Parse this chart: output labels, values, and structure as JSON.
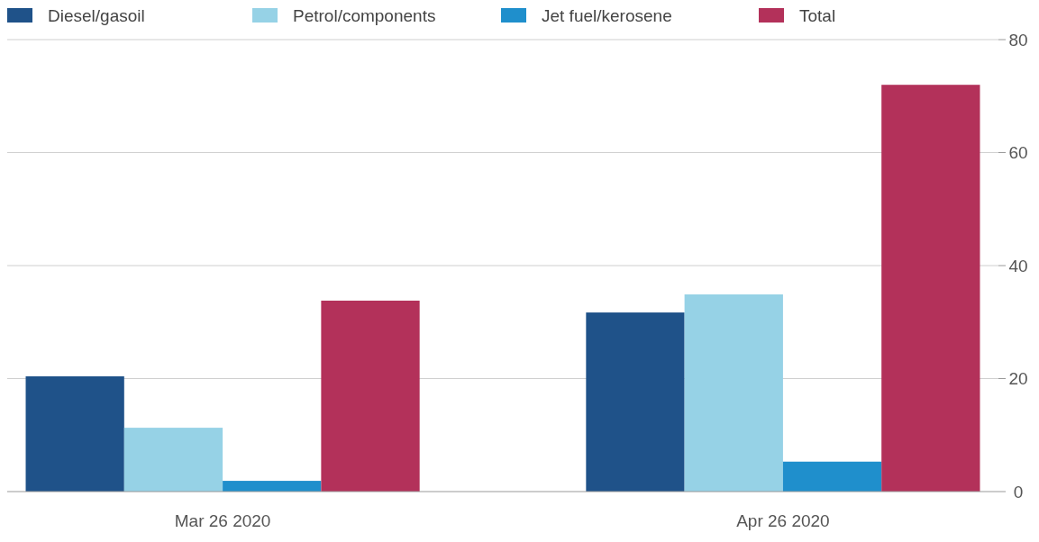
{
  "chart_data": {
    "type": "bar",
    "categories": [
      "Mar 26 2020",
      "Apr 26 2020"
    ],
    "series": [
      {
        "name": "Diesel/gasoil",
        "color": "#1f5289",
        "values": [
          20.4,
          31.7
        ]
      },
      {
        "name": "Petrol/components",
        "color": "#96d2e6",
        "values": [
          11.3,
          34.9
        ]
      },
      {
        "name": "Jet fuel/kerosene",
        "color": "#1f8fcc",
        "values": [
          1.9,
          5.3
        ]
      },
      {
        "name": "Total",
        "color": "#b3315a",
        "values": [
          33.8,
          72.0
        ]
      }
    ],
    "ylim": [
      0,
      80
    ],
    "yticks": [
      0,
      20,
      40,
      60,
      80
    ],
    "grid": "y",
    "legend": "top left"
  }
}
